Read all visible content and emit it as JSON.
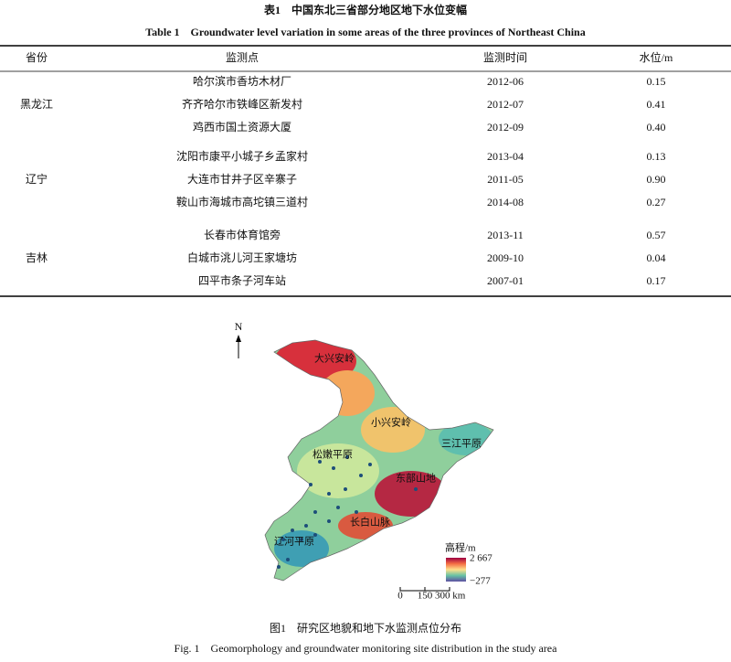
{
  "table": {
    "title_cn": "表1　中国东北三省部分地区地下水位变幅",
    "title_en": "Table 1　Groundwater level variation in some areas of the three provinces of Northeast China",
    "headers": [
      "省份",
      "监测点",
      "监测时间",
      "水位/m"
    ],
    "groups": [
      {
        "province": "黑龙江",
        "rows": [
          [
            "哈尔滨市香坊木材厂",
            "2012-06",
            "0.15"
          ],
          [
            "齐齐哈尔市铁峰区新发村",
            "2012-07",
            "0.41"
          ],
          [
            "鸡西市国土资源大厦",
            "2012-09",
            "0.40"
          ]
        ]
      },
      {
        "province": "辽宁",
        "rows": [
          [
            "沈阳市康平小城子乡孟家村",
            "2013-04",
            "0.13"
          ],
          [
            "大连市甘井子区辛寨子",
            "2011-05",
            "0.90"
          ],
          [
            "鞍山市海城市高坨镇三道村",
            "2014-08",
            "0.27"
          ]
        ]
      },
      {
        "province": "吉林",
        "rows": [
          [
            "长春市体育馆旁",
            "2013-11",
            "0.57"
          ],
          [
            "白城市洮儿河王家塘坊",
            "2009-10",
            "0.04"
          ],
          [
            "四平市条子河车站",
            "2007-01",
            "0.17"
          ]
        ]
      }
    ]
  },
  "figure": {
    "north": "N",
    "labels": [
      "大兴安岭",
      "小兴安岭",
      "三江平原",
      "松嫩平原",
      "东部山地",
      "长白山脉",
      "辽河平原"
    ],
    "legend": {
      "title": "高程/m",
      "max": "2 667",
      "min": "−277"
    },
    "scale": [
      "0",
      "150 300 km"
    ],
    "caption_cn": "图1　研究区地貌和地下水监测点位分布",
    "caption_en": "Fig. 1　Geomorphology and groundwater monitoring site distribution in the study area"
  }
}
